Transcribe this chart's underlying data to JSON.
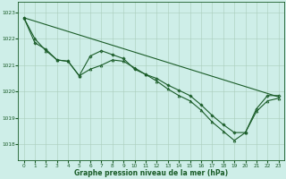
{
  "title": "Graphe pression niveau de la mer (hPa)",
  "background_color": "#ceeee8",
  "grid_color": "#aaccbb",
  "line_color": "#1a5c28",
  "x_ticks": [
    0,
    1,
    2,
    3,
    4,
    5,
    6,
    7,
    8,
    9,
    10,
    11,
    12,
    13,
    14,
    15,
    16,
    17,
    18,
    19,
    20,
    21,
    22,
    23
  ],
  "y_ticks": [
    1018,
    1019,
    1020,
    1021,
    1022,
    1023
  ],
  "ylim": [
    1017.4,
    1023.4
  ],
  "xlim": [
    -0.5,
    23.5
  ],
  "series": [
    {
      "x": [
        0,
        1,
        2,
        3,
        4,
        5,
        6,
        7,
        8,
        9,
        10,
        11,
        12,
        13,
        14,
        15,
        16,
        17,
        18,
        19,
        20,
        21,
        22,
        23
      ],
      "y": [
        1022.8,
        1021.85,
        1021.6,
        1021.2,
        1021.15,
        1020.6,
        1021.35,
        1021.55,
        1021.4,
        1021.25,
        1020.85,
        1020.65,
        1020.5,
        1020.25,
        1020.05,
        1019.85,
        1019.5,
        1019.1,
        1018.75,
        1018.45,
        1018.45,
        1019.35,
        1019.85,
        1019.85
      ],
      "marker": "P",
      "markersize": 2.0,
      "linewidth": 0.8
    },
    {
      "x": [
        0,
        23
      ],
      "y": [
        1022.8,
        1019.8
      ],
      "marker": null,
      "markersize": 0,
      "linewidth": 0.8
    },
    {
      "x": [
        0,
        1,
        2,
        3,
        4,
        5,
        6,
        7,
        8,
        9,
        10,
        11,
        12,
        13,
        14,
        15,
        16,
        17,
        18,
        19,
        20,
        21,
        22,
        23
      ],
      "y": [
        1022.8,
        1022.0,
        1021.55,
        1021.2,
        1021.15,
        1020.6,
        1020.85,
        1021.0,
        1021.2,
        1021.15,
        1020.9,
        1020.65,
        1020.4,
        1020.1,
        1019.85,
        1019.65,
        1019.3,
        1018.85,
        1018.5,
        1018.15,
        1018.45,
        1019.25,
        1019.65,
        1019.75
      ],
      "marker": "^",
      "markersize": 2.0,
      "linewidth": 0.8
    }
  ],
  "xlabel_fontsize": 5.5,
  "xlabel_fontweight": "bold",
  "tick_fontsize": 4.2
}
